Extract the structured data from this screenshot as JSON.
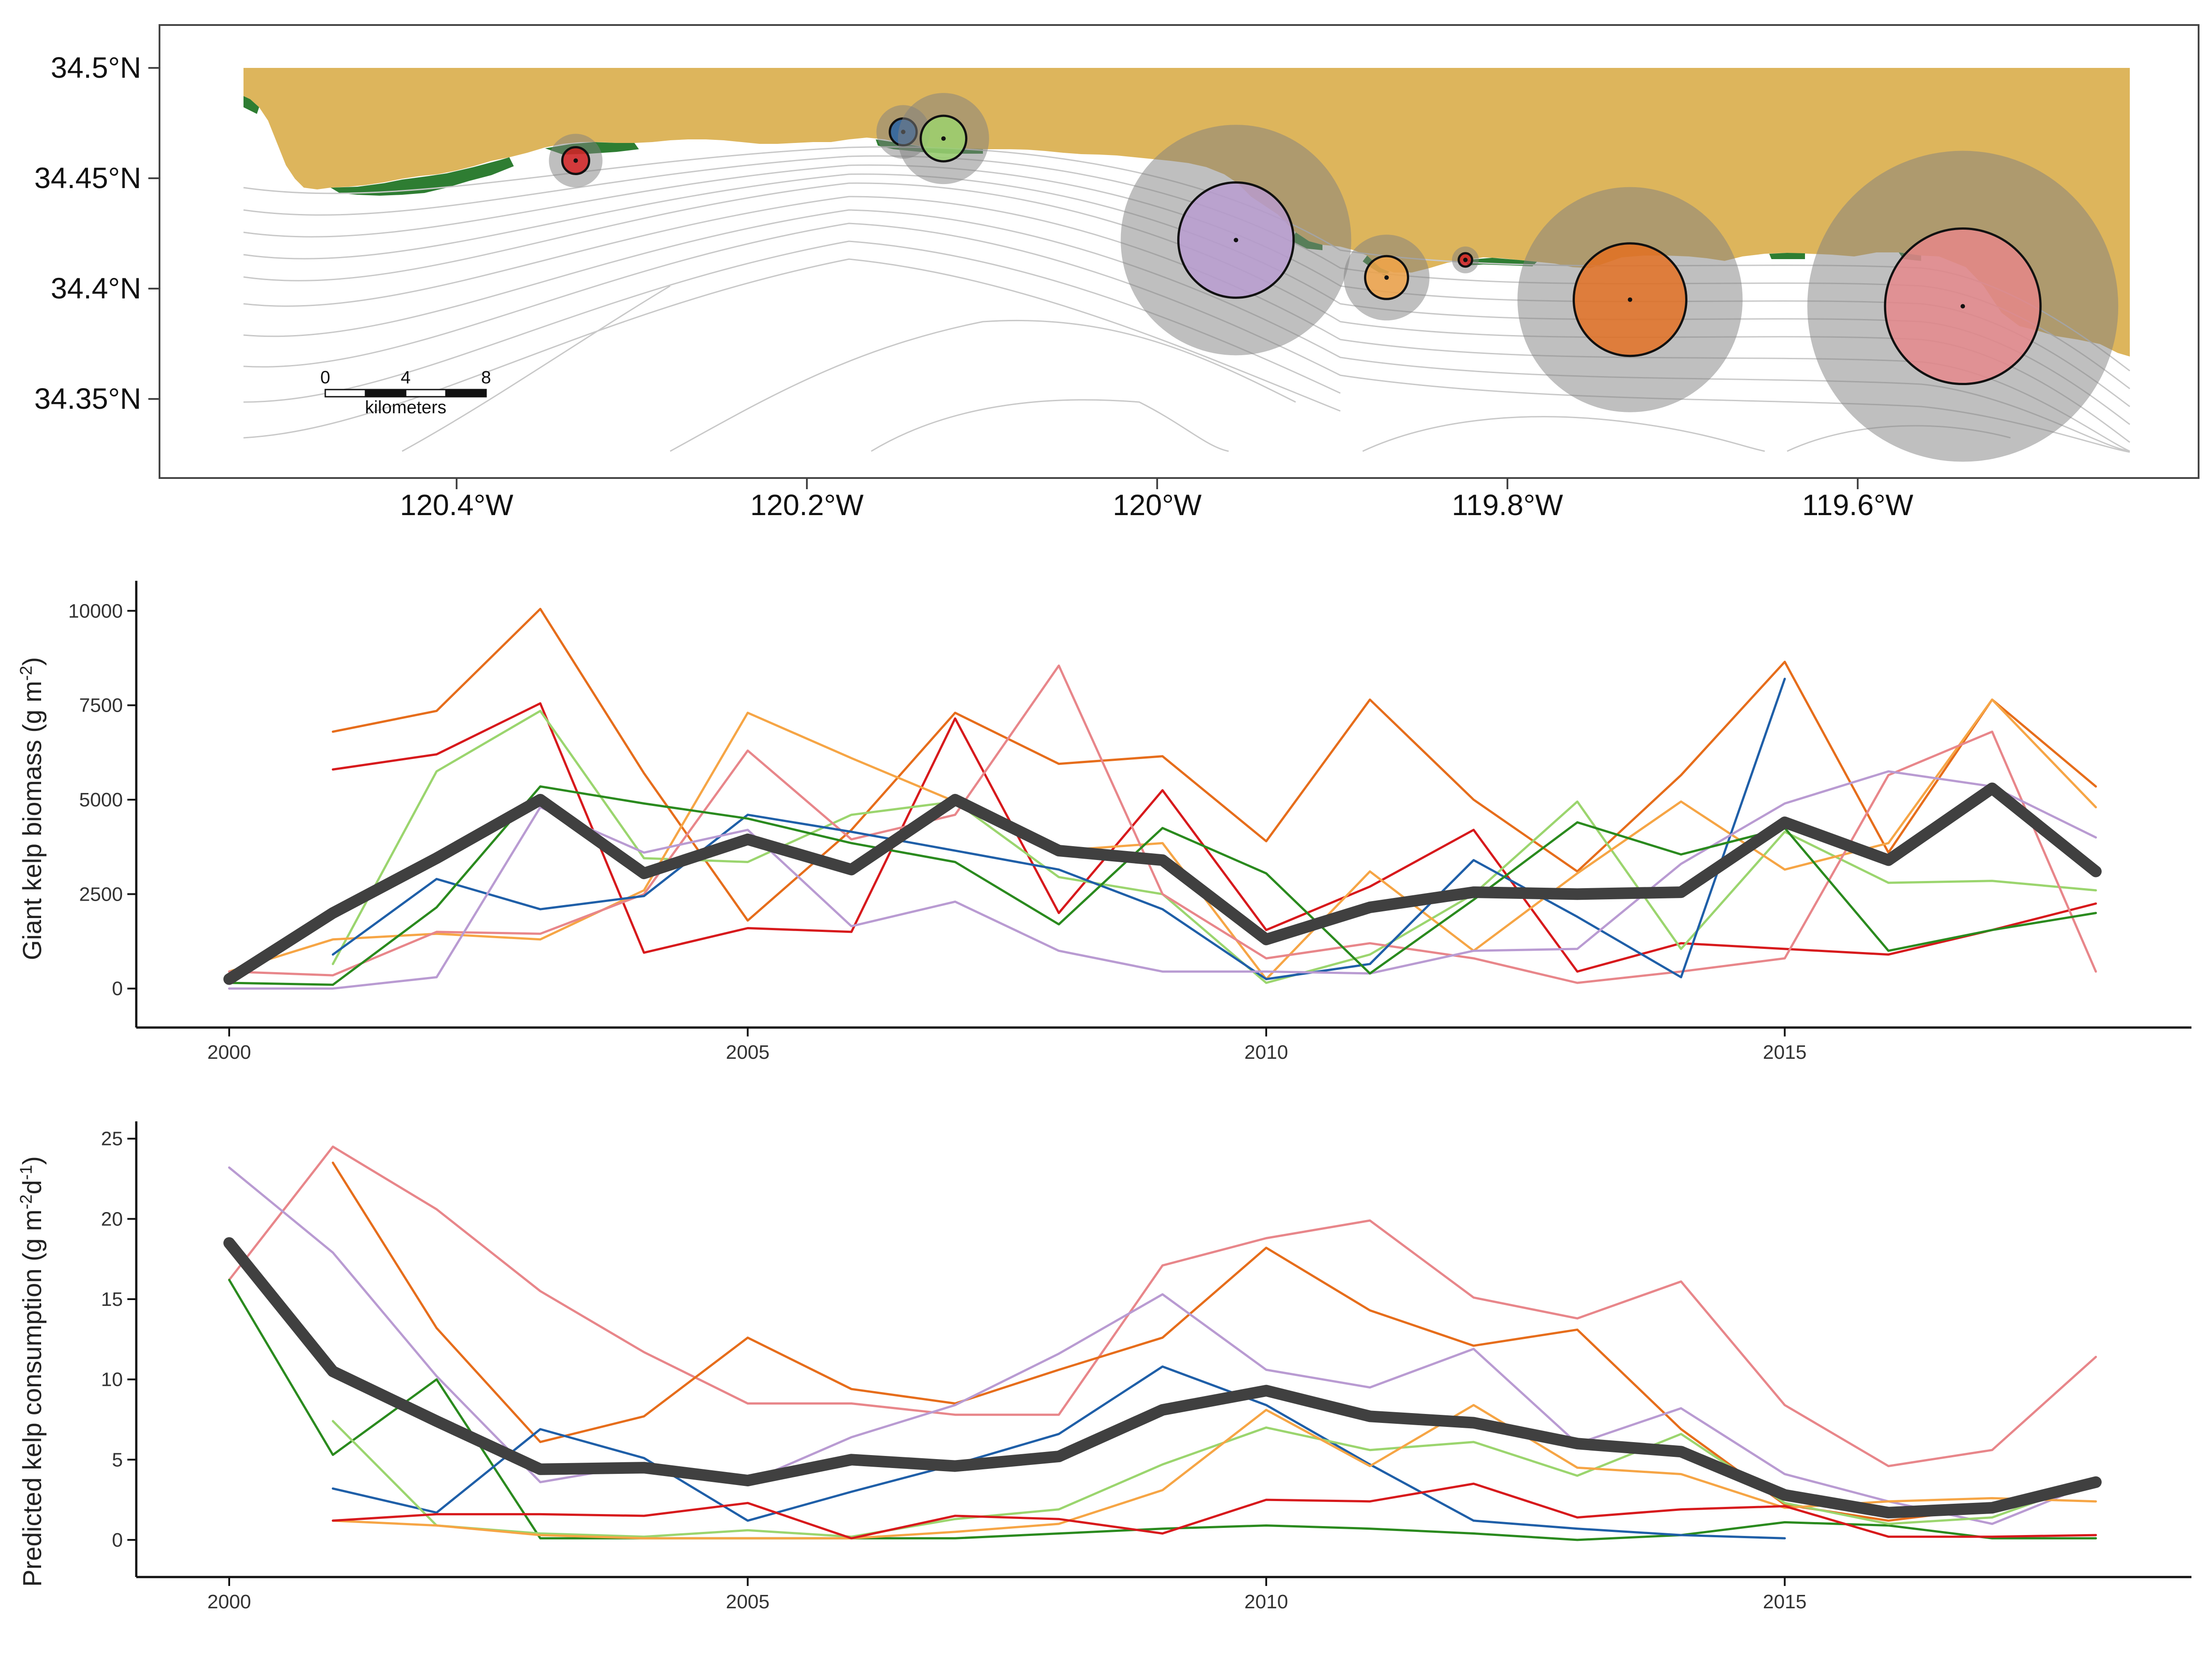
{
  "colors": {
    "land": "#DDB55C",
    "kelp": "#2E7D32",
    "bathymetry": "#C8C8C8",
    "mean_line": "#404040",
    "halo": "#7F7F7F"
  },
  "map": {
    "lat_ticks": [
      "34.35°N",
      "34.4°N",
      "34.45°N",
      "34.5°N"
    ],
    "lon_ticks": [
      "120.4°W",
      "120.2°W",
      "120°W",
      "119.8°W",
      "119.6°W"
    ],
    "scale_bar": {
      "labels": [
        "0",
        "4",
        "8"
      ],
      "unit": "kilometers"
    },
    "sites": [
      {
        "lon": -120.332,
        "lat": 34.458,
        "color": "#D7191C",
        "size": 1.0
      },
      {
        "lon": -120.145,
        "lat": 34.471,
        "color": "#1F5FA8",
        "size": 1.0
      },
      {
        "lon": -120.122,
        "lat": 34.468,
        "color": "#9BD56E",
        "size": 1.7
      },
      {
        "lon": -119.955,
        "lat": 34.422,
        "color": "#B99BD2",
        "size": 4.3
      },
      {
        "lon": -119.869,
        "lat": 34.405,
        "color": "#F6A545",
        "size": 1.6
      },
      {
        "lon": -119.824,
        "lat": 34.413,
        "color": "#D7191C",
        "size": 0.5
      },
      {
        "lon": -119.73,
        "lat": 34.395,
        "color": "#E66D1B",
        "size": 4.2
      },
      {
        "lon": -119.54,
        "lat": 34.392,
        "color": "#E8868A",
        "size": 5.8
      }
    ]
  },
  "chart_data": [
    {
      "type": "line",
      "xlabel": "",
      "ylabel": "Giant kelp biomass (g m-2)",
      "ylabel_parts": [
        "Giant kelp biomass (g m",
        "-2",
        ")"
      ],
      "xlim": [
        2000,
        2018
      ],
      "ylim": [
        -500,
        10500
      ],
      "xticks": [
        2000,
        2005,
        2010,
        2015
      ],
      "yticks": [
        0,
        2500,
        5000,
        7500,
        10000
      ],
      "series": [
        {
          "color": "#E66D1B",
          "width": 5,
          "x": [
            2001,
            2002,
            2003,
            2004,
            2005,
            2006,
            2007,
            2008,
            2009,
            2010,
            2011,
            2012,
            2013,
            2014,
            2015,
            2016,
            2017,
            2018
          ],
          "values": [
            6800,
            7350,
            10050,
            5700,
            1800,
            4200,
            7300,
            5950,
            6150,
            3900,
            7650,
            5000,
            3100,
            5650,
            8650,
            3600,
            7650,
            5350
          ]
        },
        {
          "color": "#D7191C",
          "width": 5,
          "x": [
            2001,
            2002,
            2003,
            2004,
            2005,
            2006,
            2007,
            2008,
            2009,
            2010,
            2011,
            2012,
            2013,
            2014,
            2015,
            2016,
            2017,
            2018
          ],
          "values": [
            5800,
            6200,
            7550,
            950,
            1600,
            1500,
            7150,
            2000,
            5250,
            1550,
            2700,
            4200,
            450,
            1200,
            1050,
            900,
            1550,
            2250
          ]
        },
        {
          "color": "#9BD56E",
          "width": 5,
          "x": [
            2001,
            2002,
            2003,
            2004,
            2005,
            2006,
            2007,
            2008,
            2009,
            2010,
            2011,
            2012,
            2013,
            2014,
            2015,
            2016,
            2017,
            2018
          ],
          "values": [
            650,
            5750,
            7350,
            3450,
            3350,
            4600,
            4950,
            2950,
            2500,
            150,
            900,
            2500,
            4950,
            1050,
            4150,
            2800,
            2850,
            2600
          ]
        },
        {
          "color": "#F6A545",
          "width": 5,
          "x": [
            2000,
            2001,
            2002,
            2003,
            2004,
            2005,
            2006,
            2007,
            2008,
            2009,
            2010,
            2011,
            2012,
            2013,
            2014,
            2015,
            2016,
            2017,
            2018
          ],
          "values": [
            450,
            1300,
            1450,
            1300,
            2600,
            7300,
            6100,
            4950,
            3650,
            3850,
            250,
            3100,
            1000,
            3050,
            4950,
            3150,
            3850,
            7650,
            4800
          ]
        },
        {
          "color": "#E8868A",
          "width": 5,
          "x": [
            2000,
            2001,
            2002,
            2003,
            2004,
            2005,
            2006,
            2007,
            2008,
            2009,
            2010,
            2011,
            2012,
            2013,
            2014,
            2015,
            2016,
            2017,
            2018
          ],
          "values": [
            450,
            350,
            1500,
            1450,
            2500,
            6300,
            3950,
            4600,
            8550,
            2500,
            800,
            1200,
            800,
            150,
            450,
            800,
            5650,
            6800,
            450
          ]
        },
        {
          "color": "#1F5FA8",
          "width": 5,
          "x": [
            2001,
            2002,
            2003,
            2004,
            2005,
            2006,
            2007,
            2008,
            2009,
            2010,
            2011,
            2012,
            2013,
            2014,
            2015
          ],
          "values": [
            900,
            2900,
            2100,
            2450,
            4600,
            4150,
            3650,
            3150,
            2100,
            250,
            650,
            3400,
            1900,
            300,
            8200
          ]
        },
        {
          "color": "#B99BD2",
          "width": 5,
          "x": [
            2000,
            2001,
            2002,
            2003,
            2004,
            2005,
            2006,
            2007,
            2008,
            2009,
            2010,
            2011,
            2012,
            2013,
            2014,
            2015,
            2016,
            2017,
            2018
          ],
          "values": [
            0,
            0,
            300,
            4800,
            3600,
            4200,
            1650,
            2300,
            1000,
            450,
            450,
            400,
            1000,
            1050,
            3300,
            4900,
            5750,
            5350,
            4000
          ]
        },
        {
          "color": "#2A8A1E",
          "width": 5,
          "x": [
            2000,
            2001,
            2002,
            2003,
            2004,
            2005,
            2006,
            2007,
            2008,
            2009,
            2010,
            2011,
            2012,
            2013,
            2014,
            2015,
            2016,
            2017,
            2018
          ],
          "values": [
            150,
            100,
            2150,
            5350,
            4900,
            4500,
            3850,
            3350,
            1700,
            4250,
            3050,
            400,
            2350,
            4400,
            3550,
            4250,
            1000,
            1550,
            2000
          ]
        },
        {
          "color": "#404040",
          "width": 26,
          "x": [
            2000,
            2001,
            2002,
            2003,
            2004,
            2005,
            2006,
            2007,
            2008,
            2009,
            2010,
            2011,
            2012,
            2013,
            2014,
            2015,
            2016,
            2017,
            2018
          ],
          "values": [
            250,
            2000,
            3450,
            5000,
            3050,
            3950,
            3150,
            5000,
            3650,
            3400,
            1300,
            2150,
            2550,
            2500,
            2550,
            4400,
            3400,
            5300,
            3100
          ]
        }
      ]
    },
    {
      "type": "line",
      "xlabel": "",
      "ylabel": "Predicted kelp consumption (g m-2d-1)",
      "ylabel_parts": [
        "Predicted kelp consumption (g m",
        "-2",
        "d",
        "-1",
        ")"
      ],
      "xlim": [
        2000,
        2018
      ],
      "ylim": [
        -1.2,
        25.8
      ],
      "xticks": [
        2000,
        2005,
        2010,
        2015
      ],
      "yticks": [
        0,
        5,
        10,
        15,
        20,
        25
      ],
      "series": [
        {
          "color": "#E8868A",
          "width": 5,
          "x": [
            2000,
            2001,
            2002,
            2003,
            2004,
            2005,
            2006,
            2007,
            2008,
            2009,
            2010,
            2011,
            2012,
            2013,
            2014,
            2015,
            2016,
            2017,
            2018
          ],
          "values": [
            16.2,
            24.5,
            20.6,
            15.5,
            11.7,
            8.5,
            8.5,
            7.8,
            7.8,
            17.1,
            18.8,
            19.9,
            15.1,
            13.8,
            16.1,
            8.4,
            4.6,
            5.6,
            11.4
          ]
        },
        {
          "color": "#E66D1B",
          "width": 5,
          "x": [
            2001,
            2002,
            2003,
            2004,
            2005,
            2006,
            2007,
            2008,
            2009,
            2010,
            2011,
            2012,
            2013,
            2014,
            2015,
            2016,
            2017,
            2018
          ],
          "values": [
            23.5,
            13.2,
            6.1,
            7.7,
            12.6,
            9.4,
            8.5,
            10.6,
            12.6,
            18.2,
            14.3,
            12.1,
            13.1,
            6.9,
            2.2,
            1.2,
            2.0,
            3.4
          ]
        },
        {
          "color": "#B99BD2",
          "width": 5,
          "x": [
            2000,
            2001,
            2002,
            2003,
            2004,
            2005,
            2006,
            2007,
            2008,
            2009,
            2010,
            2011,
            2012,
            2013,
            2014,
            2015,
            2016,
            2017,
            2018
          ],
          "values": [
            23.2,
            17.9,
            10.2,
            3.6,
            4.7,
            3.6,
            6.4,
            8.4,
            11.6,
            15.3,
            10.6,
            9.5,
            11.9,
            6.0,
            8.2,
            4.1,
            2.4,
            1.0,
            3.6
          ]
        },
        {
          "color": "#2A8A1E",
          "width": 5,
          "x": [
            2000,
            2001,
            2002,
            2003,
            2004,
            2005,
            2006,
            2007,
            2008,
            2009,
            2010,
            2011,
            2012,
            2013,
            2014,
            2015,
            2016,
            2017,
            2018
          ],
          "values": [
            16.2,
            5.3,
            10.0,
            0.1,
            0.1,
            0.1,
            0.1,
            0.1,
            0.4,
            0.7,
            0.9,
            0.7,
            0.4,
            0.0,
            0.3,
            1.1,
            0.9,
            0.1,
            0.1
          ]
        },
        {
          "color": "#1F5FA8",
          "width": 5,
          "x": [
            2001,
            2002,
            2003,
            2004,
            2005,
            2006,
            2007,
            2008,
            2009,
            2010,
            2011,
            2012,
            2013,
            2014,
            2015
          ],
          "values": [
            3.2,
            1.7,
            6.9,
            5.1,
            1.2,
            3.0,
            4.7,
            6.6,
            10.8,
            8.4,
            4.7,
            1.2,
            0.7,
            0.3,
            0.1
          ]
        },
        {
          "color": "#9BD56E",
          "width": 5,
          "x": [
            2001,
            2002,
            2003,
            2004,
            2005,
            2006,
            2007,
            2008,
            2009,
            2010,
            2011,
            2012,
            2013,
            2014,
            2015,
            2016,
            2017,
            2018
          ],
          "values": [
            7.4,
            0.9,
            0.4,
            0.2,
            0.6,
            0.2,
            1.3,
            1.9,
            4.7,
            7.0,
            5.6,
            6.1,
            4.0,
            6.6,
            2.3,
            1.0,
            1.4,
            3.7
          ]
        },
        {
          "color": "#F6A545",
          "width": 5,
          "x": [
            2001,
            2002,
            2003,
            2004,
            2005,
            2006,
            2007,
            2008,
            2009,
            2010,
            2011,
            2012,
            2013,
            2014,
            2015,
            2016,
            2017,
            2018
          ],
          "values": [
            1.2,
            0.9,
            0.3,
            0.1,
            0.1,
            0.1,
            0.5,
            1.0,
            3.1,
            8.1,
            4.6,
            8.4,
            4.5,
            4.1,
            2.0,
            2.4,
            2.6,
            2.4
          ]
        },
        {
          "color": "#D7191C",
          "width": 5,
          "x": [
            2001,
            2002,
            2003,
            2004,
            2005,
            2006,
            2007,
            2008,
            2009,
            2010,
            2011,
            2012,
            2013,
            2014,
            2015,
            2016,
            2017,
            2018
          ],
          "values": [
            1.2,
            1.6,
            1.6,
            1.5,
            2.3,
            0.1,
            1.5,
            1.3,
            0.4,
            2.5,
            2.4,
            3.5,
            1.4,
            1.9,
            2.1,
            0.2,
            0.2,
            0.3
          ]
        },
        {
          "color": "#404040",
          "width": 26,
          "x": [
            2000,
            2001,
            2002,
            2003,
            2004,
            2005,
            2006,
            2007,
            2008,
            2009,
            2010,
            2011,
            2012,
            2013,
            2014,
            2015,
            2016,
            2017,
            2018
          ],
          "values": [
            18.5,
            10.5,
            7.4,
            4.4,
            4.5,
            3.7,
            5.0,
            4.6,
            5.2,
            8.1,
            9.3,
            7.7,
            7.3,
            6.0,
            5.5,
            2.8,
            1.7,
            2.0,
            3.6
          ]
        }
      ]
    }
  ]
}
